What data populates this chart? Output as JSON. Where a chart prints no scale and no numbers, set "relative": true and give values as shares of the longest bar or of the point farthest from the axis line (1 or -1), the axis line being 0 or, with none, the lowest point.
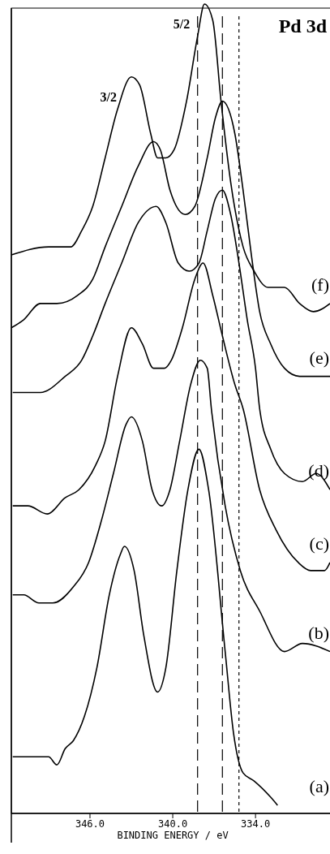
{
  "chart_data": {
    "type": "line",
    "title": "Pd 3d",
    "xlabel": "BINDING ENERGY / eV",
    "relative": true,
    "color": "#000000",
    "line_style": "solid",
    "xlim": [
      351.7,
      328.6
    ],
    "xticks": [
      {
        "value": 346,
        "label": "346.0"
      },
      {
        "value": 340,
        "label": "340.0"
      },
      {
        "value": 334,
        "label": "334.0"
      }
    ],
    "annotations": [
      {
        "text": "5/2",
        "x": 337.7,
        "y": 1.0
      },
      {
        "text": "3/2",
        "x": 343.0,
        "y": 0.91
      }
    ],
    "ref_lines": [
      {
        "axis": "x",
        "value": 338.2,
        "line_style": "dashed"
      },
      {
        "axis": "x",
        "value": 336.4,
        "line_style": "dashed"
      },
      {
        "axis": "x",
        "value": 335.2,
        "line_style": "dotted"
      }
    ],
    "series": [
      {
        "name": "(f)",
        "x": [
          351.7,
          349.0,
          347.4,
          346.6,
          345.8,
          344.9,
          344.0,
          343.0,
          342.4,
          341.6,
          341.1,
          340.5,
          339.9,
          339.0,
          338.2,
          337.7,
          337.1,
          336.5,
          335.8,
          334.9,
          334.1,
          333.1,
          331.9,
          330.8,
          329.8,
          328.6
        ],
        "values": [
          0.69,
          0.7,
          0.7,
          0.72,
          0.75,
          0.81,
          0.87,
          0.91,
          0.9,
          0.84,
          0.81,
          0.81,
          0.82,
          0.88,
          0.96,
          1.0,
          0.98,
          0.88,
          0.78,
          0.7,
          0.67,
          0.65,
          0.65,
          0.63,
          0.62,
          0.63
        ]
      },
      {
        "name": "(e)",
        "x": [
          351.7,
          350.8,
          349.6,
          348.4,
          346.9,
          345.8,
          344.9,
          343.7,
          342.5,
          341.4,
          340.9,
          340.2,
          339.1,
          338.4,
          337.5,
          336.9,
          336.4,
          335.5,
          334.9,
          334.3,
          333.7,
          332.9,
          331.9,
          330.8,
          328.6
        ],
        "values": [
          0.6,
          0.61,
          0.63,
          0.63,
          0.64,
          0.66,
          0.7,
          0.75,
          0.8,
          0.83,
          0.82,
          0.77,
          0.74,
          0.75,
          0.81,
          0.86,
          0.88,
          0.84,
          0.77,
          0.69,
          0.62,
          0.58,
          0.55,
          0.54,
          0.54
        ]
      },
      {
        "name": "(d)",
        "x": [
          351.6,
          350.8,
          349.6,
          347.8,
          346.6,
          345.8,
          344.9,
          343.7,
          342.5,
          341.2,
          340.5,
          339.6,
          338.8,
          338.1,
          337.5,
          336.9,
          336.4,
          335.8,
          335.2,
          334.6,
          334.0,
          333.7,
          332.9,
          331.9,
          330.6,
          329.6,
          328.6
        ],
        "values": [
          0.52,
          0.52,
          0.52,
          0.54,
          0.56,
          0.59,
          0.63,
          0.68,
          0.73,
          0.75,
          0.73,
          0.68,
          0.67,
          0.68,
          0.72,
          0.76,
          0.77,
          0.74,
          0.68,
          0.61,
          0.55,
          0.5,
          0.45,
          0.42,
          0.41,
          0.42,
          0.4
        ]
      },
      {
        "name": "(c)",
        "x": [
          351.6,
          350.5,
          349.1,
          347.8,
          346.8,
          345.6,
          344.9,
          344.0,
          343.0,
          342.2,
          341.4,
          340.6,
          340.1,
          339.3,
          338.4,
          337.8,
          337.1,
          336.4,
          335.5,
          334.9,
          333.7,
          332.5,
          330.9,
          330.0,
          329.0,
          328.6
        ],
        "values": [
          0.38,
          0.38,
          0.37,
          0.39,
          0.4,
          0.43,
          0.46,
          0.54,
          0.6,
          0.58,
          0.55,
          0.55,
          0.56,
          0.6,
          0.66,
          0.68,
          0.64,
          0.59,
          0.53,
          0.5,
          0.4,
          0.35,
          0.31,
          0.3,
          0.3,
          0.31
        ]
      },
      {
        "name": "(b)",
        "x": [
          351.6,
          350.8,
          349.7,
          348.7,
          347.2,
          346.1,
          345.2,
          344.3,
          343.4,
          343.0,
          342.2,
          341.5,
          340.8,
          340.2,
          339.5,
          338.7,
          338.0,
          337.5,
          337.2,
          336.2,
          335.1,
          333.7,
          331.9,
          330.6,
          328.6
        ],
        "values": [
          0.27,
          0.27,
          0.26,
          0.26,
          0.28,
          0.31,
          0.36,
          0.42,
          0.48,
          0.49,
          0.46,
          0.4,
          0.38,
          0.4,
          0.46,
          0.53,
          0.56,
          0.55,
          0.5,
          0.38,
          0.3,
          0.25,
          0.2,
          0.21,
          0.2
        ]
      },
      {
        "name": "(a)",
        "x": [
          351.6,
          350.2,
          349.0,
          348.4,
          347.8,
          347.2,
          346.4,
          345.5,
          344.6,
          343.8,
          343.5,
          342.8,
          342.1,
          341.1,
          340.5,
          339.7,
          338.9,
          338.1,
          337.4,
          336.2,
          335.6,
          334.9,
          334.1,
          332.9,
          332.4
        ],
        "values": [
          0.07,
          0.07,
          0.07,
          0.06,
          0.08,
          0.09,
          0.12,
          0.18,
          0.27,
          0.32,
          0.33,
          0.3,
          0.22,
          0.15,
          0.18,
          0.3,
          0.4,
          0.45,
          0.4,
          0.2,
          0.1,
          0.05,
          0.04,
          0.02,
          0.01
        ]
      }
    ]
  }
}
